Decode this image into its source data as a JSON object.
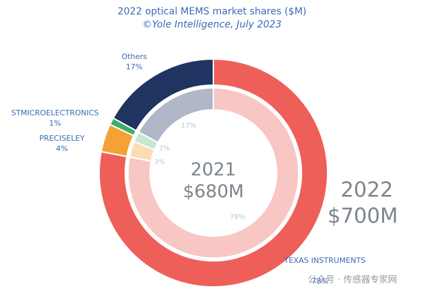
{
  "chart_data": {
    "type": "nested-donut",
    "title": "2022 optical MEMS market shares ($M)",
    "subtitle": "©Yole Intelligence, July 2023",
    "categories": [
      "TEXAS INSTRUMENTS",
      "PRECISELEY",
      "STMICROELECTRONICS",
      "Others"
    ],
    "series": [
      {
        "name": "2022",
        "total_label": "$700M",
        "colors": [
          "#ee5f5a",
          "#f4a233",
          "#3dae6b",
          "#1f3460"
        ],
        "values": [
          78,
          4,
          1,
          17
        ],
        "value_labels": [
          "78%",
          "4%",
          "1%",
          "17%"
        ]
      },
      {
        "name": "2021",
        "total_label": "$680M",
        "colors": [
          "#f8c6c3",
          "#fcdcb5",
          "#c7e7d1",
          "#b2b7c7"
        ],
        "values": [
          78,
          3,
          2,
          17
        ],
        "value_labels": [
          "78%",
          "3%",
          "2%",
          "17%"
        ]
      }
    ],
    "watermark": "公众号 · 传感器专家网"
  }
}
